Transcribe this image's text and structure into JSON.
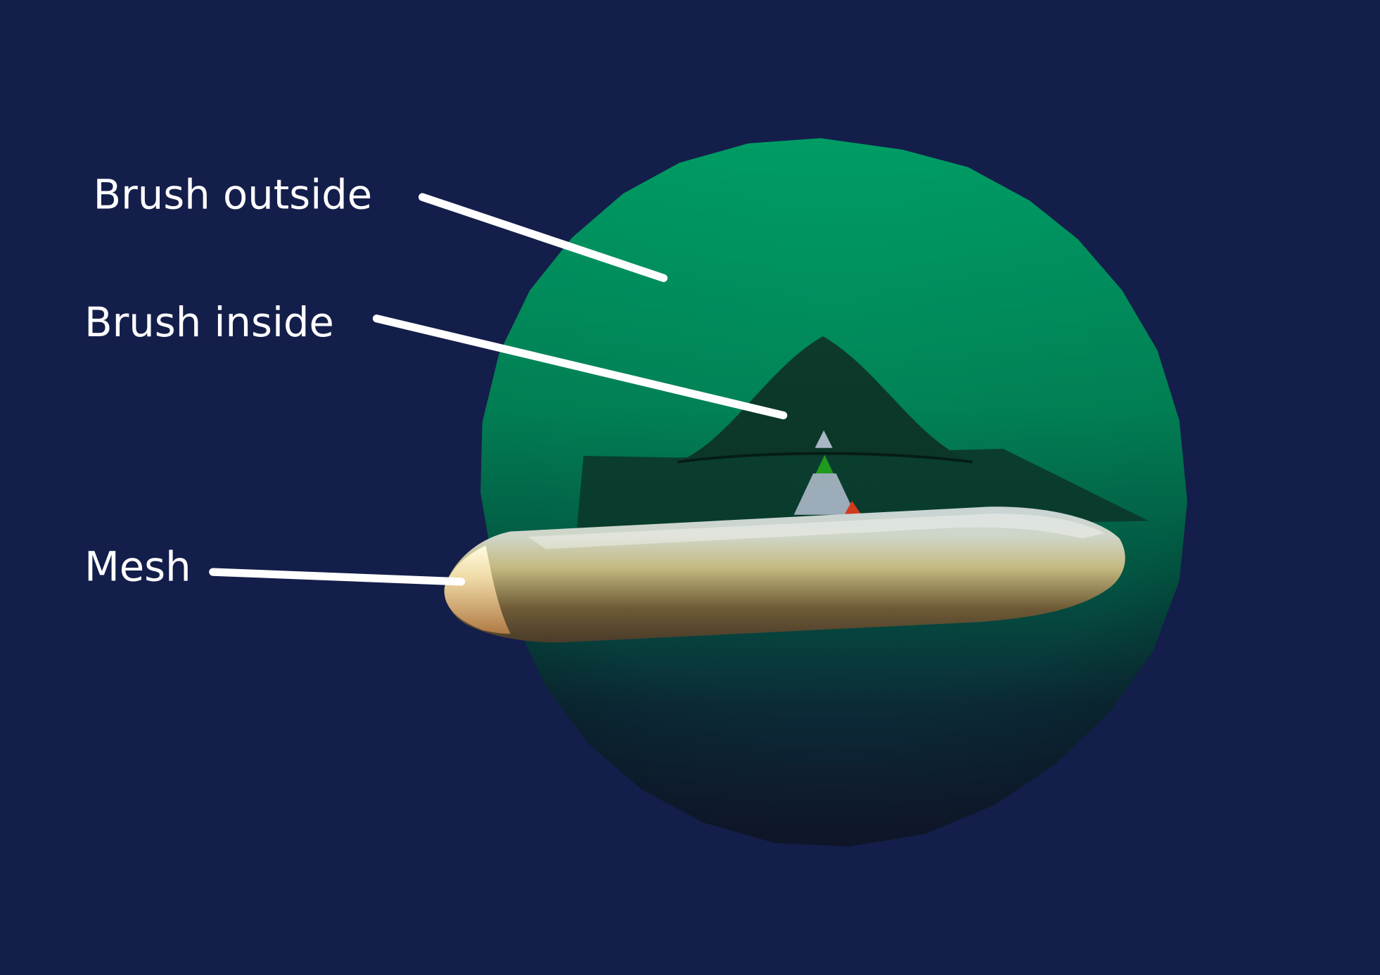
{
  "viewport": {
    "background_color": "#141e4a"
  },
  "scene": {
    "brush_outside": {
      "color": "#009a66",
      "shape": "faceted-sphere"
    },
    "brush_inside": {
      "color": "#0c3326",
      "shape": "gaussian-falloff-surface"
    },
    "mesh": {
      "color": "#c8c28a",
      "shape": "capsule"
    },
    "gizmo": {
      "icon": "axis-gizmo-icon",
      "colors": {
        "y_axis": "#1f9a1f",
        "x_axis": "#d23a1e",
        "body": "#a9b6c4"
      }
    }
  },
  "labels": {
    "brush_outside": "Brush outside",
    "brush_inside": "Brush inside",
    "mesh": "Mesh"
  }
}
